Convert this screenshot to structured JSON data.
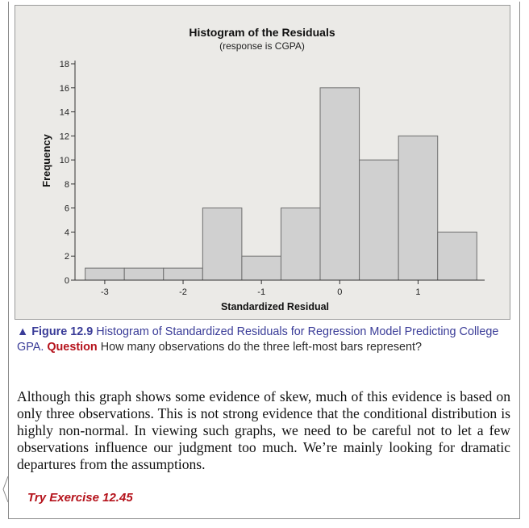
{
  "chart_data": {
    "type": "bar",
    "title": "Histogram of the Residuals",
    "subtitle": "(response is CGPA)",
    "xlabel": "Standardized Residual",
    "ylabel": "Frequency",
    "bin_edges": [
      -3.25,
      -2.75,
      -2.25,
      -1.75,
      -1.25,
      -0.75,
      -0.25,
      0.25,
      0.75,
      1.25,
      1.75
    ],
    "values": [
      1,
      1,
      1,
      6,
      2,
      6,
      16,
      10,
      12,
      4
    ],
    "xticks": [
      -3,
      -2,
      -1,
      0,
      1
    ],
    "xtick_labels": [
      "-3",
      "-2",
      "-1",
      "0",
      "1"
    ],
    "yticks": [
      0,
      2,
      4,
      6,
      8,
      10,
      12,
      14,
      16,
      18
    ],
    "ytick_labels": [
      "0",
      "2",
      "4",
      "6",
      "8",
      "10",
      "12",
      "14",
      "16",
      "18"
    ],
    "ylim": [
      0,
      18
    ],
    "xlim": [
      -3.38,
      1.85
    ],
    "bar_fill": "#d0d0d0",
    "bar_stroke": "#6e6e6e",
    "grid": false
  },
  "caption": {
    "figure_label": "▲ Figure 12.9",
    "figure_title": "Histogram of Standardized Residuals for Regression Model Predicting College GPA.",
    "question_label": "Question",
    "question_text": "How many observations do the three left-most bars represent?"
  },
  "body_text": "Although this graph shows some evidence of skew, much of this evidence is based on only three observations. This is not strong evidence that the conditional distribution is highly non-normal. In viewing such graphs, we need to be careful not to let a few observations influence our judgment too much. We’re mainly looking for dramatic departures from the assumptions.",
  "exercise_link": "Try Exercise 12.45",
  "colors": {
    "accent_blue": "#3a3c98",
    "accent_red": "#b5121b",
    "chart_background": "#ebeae7"
  }
}
